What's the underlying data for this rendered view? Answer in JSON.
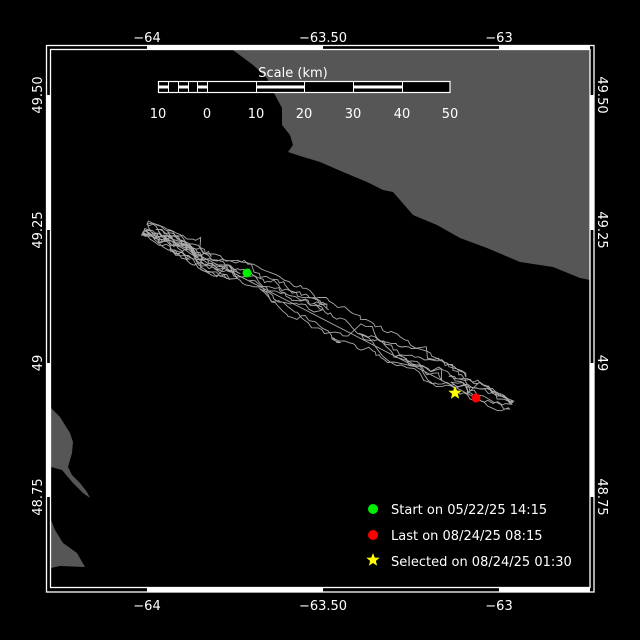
{
  "axes": {
    "lon_ticks": [
      "−64",
      "−63.50",
      "−63"
    ],
    "lat_ticks": [
      "49.50",
      "49.25",
      "49",
      "48.75"
    ]
  },
  "scale_bar": {
    "title": "Scale (km)",
    "labels": [
      "10",
      "0",
      "10",
      "20",
      "30",
      "40",
      "50"
    ]
  },
  "legend": {
    "start": "Start on 05/22/25 14:15",
    "last": "Last on 08/24/25 08:15",
    "selected": "Selected on 08/24/25 01:30"
  },
  "colors": {
    "background": "#000000",
    "land": "#565656",
    "track": "#aaaaaa",
    "start": "#00ee00",
    "last": "#ff0000",
    "selected": "#ffff00",
    "frame": "#ffffff"
  }
}
